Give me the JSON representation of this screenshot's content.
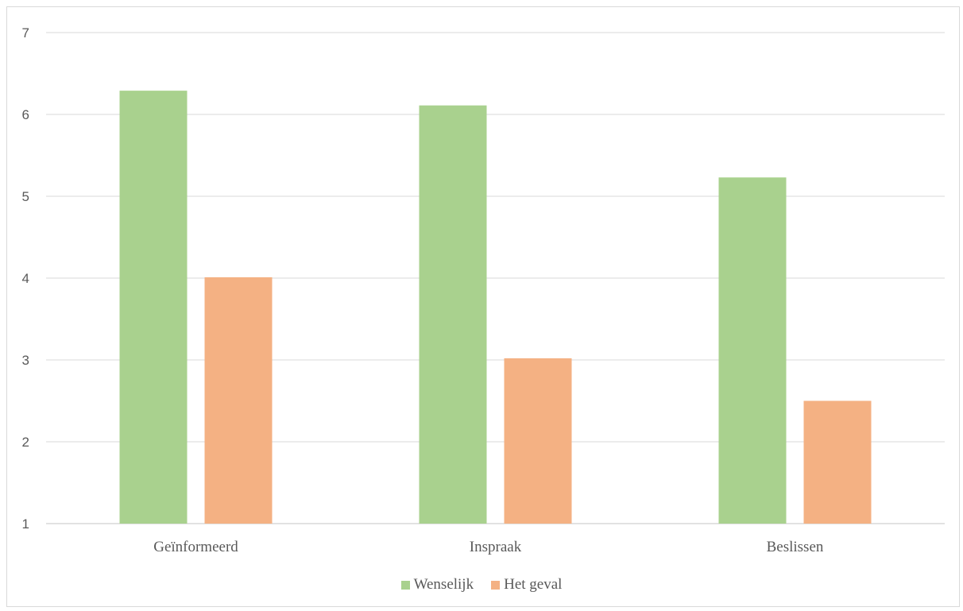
{
  "chart_data": {
    "type": "bar",
    "categories": [
      "Geïnformeerd",
      "Inspraak",
      "Beslissen"
    ],
    "series": [
      {
        "name": "Wenselijk",
        "values": [
          6.29,
          6.11,
          5.23
        ],
        "color": "#a9d18e"
      },
      {
        "name": "Het geval",
        "values": [
          4.01,
          3.02,
          2.5
        ],
        "color": "#f4b183"
      }
    ],
    "title": "",
    "xlabel": "",
    "ylabel": "",
    "ylim": [
      1,
      7
    ],
    "yticks": [
      "1",
      "2",
      "3",
      "4",
      "5",
      "6",
      "7"
    ],
    "grid": true,
    "legend_position": "bottom"
  }
}
